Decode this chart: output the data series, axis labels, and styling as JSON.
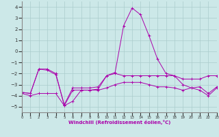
{
  "xlabel": "Windchill (Refroidissement éolien,°C)",
  "x": [
    0,
    1,
    2,
    3,
    4,
    5,
    6,
    7,
    8,
    9,
    10,
    11,
    12,
    13,
    14,
    15,
    16,
    17,
    18,
    19,
    20,
    21,
    22,
    23
  ],
  "line1": [
    -3.7,
    -3.8,
    -1.6,
    -1.6,
    -2.0,
    -4.9,
    -3.5,
    -3.5,
    -3.5,
    -3.4,
    -2.2,
    -1.9,
    2.3,
    3.9,
    3.3,
    1.4,
    -0.7,
    -2.0,
    -2.2,
    -3.0,
    -3.3,
    -3.2,
    -3.8,
    -3.2
  ],
  "line2": [
    -3.7,
    -3.8,
    -1.6,
    -1.7,
    -2.1,
    -4.8,
    -3.3,
    -3.3,
    -3.3,
    -3.2,
    -2.2,
    -2.0,
    -2.2,
    -2.2,
    -2.2,
    -2.2,
    -2.2,
    -2.2,
    -2.2,
    -2.5,
    -2.5,
    -2.5,
    -2.2,
    -2.2
  ],
  "line3": [
    -3.8,
    -4.0,
    -3.8,
    -3.8,
    -3.8,
    -4.9,
    -4.5,
    -3.5,
    -3.5,
    -3.5,
    -3.3,
    -3.0,
    -2.8,
    -2.8,
    -2.8,
    -3.0,
    -3.2,
    -3.2,
    -3.3,
    -3.5,
    -3.3,
    -3.5,
    -4.0,
    -3.3
  ],
  "line_color": "#aa00aa",
  "bg_color": "#cce8e8",
  "grid_color": "#aacccc",
  "ylim": [
    -5.5,
    4.5
  ],
  "yticks": [
    -5,
    -4,
    -3,
    -2,
    -1,
    0,
    1,
    2,
    3,
    4
  ],
  "xlim": [
    0,
    23
  ]
}
